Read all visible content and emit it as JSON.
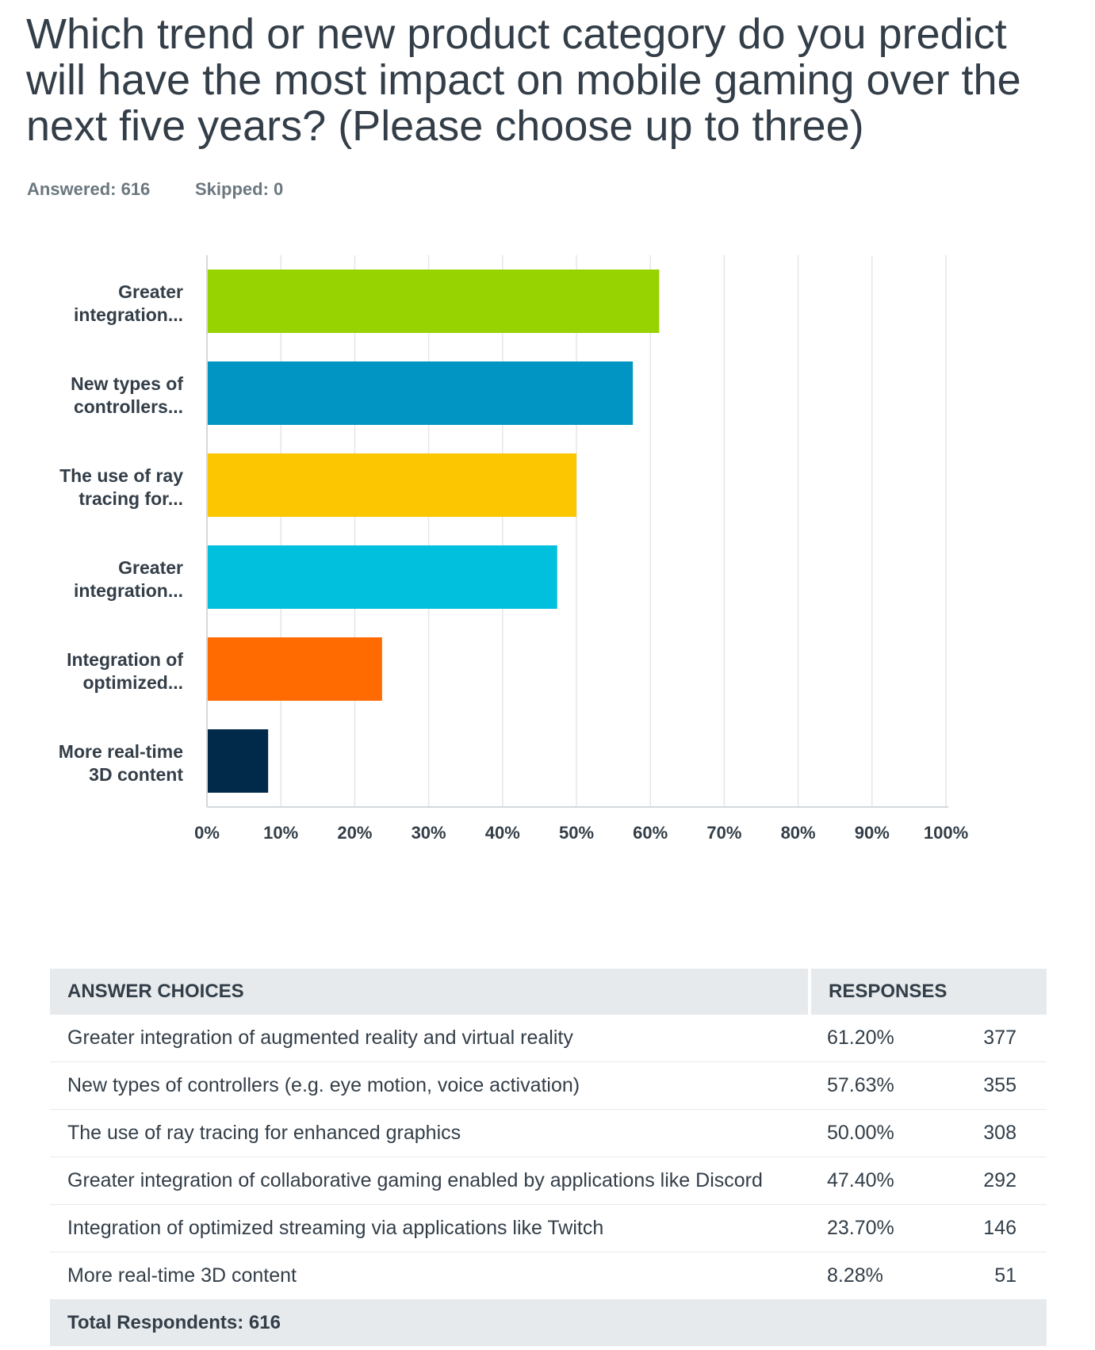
{
  "question": "Which trend or new product category do you predict will have the most impact on mobile gaming over the next five years? (Please choose up to three)",
  "answered": "Answered: 616",
  "skipped": "Skipped: 0",
  "chart_data": {
    "type": "bar",
    "orientation": "horizontal",
    "categories": [
      [
        "Greater",
        "integration..."
      ],
      [
        "New types of",
        "controllers..."
      ],
      [
        "The use of ray",
        "tracing for..."
      ],
      [
        "Greater",
        "integration..."
      ],
      [
        "Integration of",
        "optimized..."
      ],
      [
        "More real-time",
        "3D  content"
      ]
    ],
    "values": [
      61.2,
      57.63,
      50.0,
      47.4,
      23.7,
      8.28
    ],
    "colors": [
      "#96d300",
      "#0095c3",
      "#fcc600",
      "#00c0dd",
      "#ff6b00",
      "#00294a"
    ],
    "xlim": [
      0,
      100
    ],
    "xticks": [
      "0%",
      "10%",
      "20%",
      "30%",
      "40%",
      "50%",
      "60%",
      "70%",
      "80%",
      "90%",
      "100%"
    ],
    "grid": true,
    "title": "",
    "xlabel": "",
    "ylabel": ""
  },
  "table": {
    "headers": [
      "ANSWER CHOICES",
      "RESPONSES"
    ],
    "rows": [
      {
        "choice": "Greater integration of augmented reality and virtual reality",
        "pct": "61.20%",
        "count": "377"
      },
      {
        "choice": "New types of controllers (e.g. eye motion, voice activation)",
        "pct": "57.63%",
        "count": "355"
      },
      {
        "choice": "The use of ray tracing for enhanced graphics",
        "pct": "50.00%",
        "count": "308"
      },
      {
        "choice": "Greater integration of collaborative gaming enabled by applications like Discord",
        "pct": "47.40%",
        "count": "292"
      },
      {
        "choice": "Integration of optimized streaming via applications like Twitch",
        "pct": "23.70%",
        "count": "146"
      },
      {
        "choice": "More real-time 3D content",
        "pct": "8.28%",
        "count": "51"
      }
    ],
    "total": "Total Respondents: 616"
  }
}
